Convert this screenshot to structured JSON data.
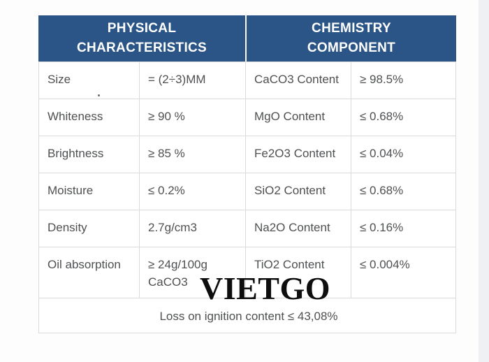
{
  "colors": {
    "header_bg": "#2a5586",
    "border": "#d9dadb",
    "cell_text": "#4e5052",
    "page_bg": "#fdfdfd",
    "right_strip": "#eef0f4",
    "watermark_color": "#0e0e0e"
  },
  "table": {
    "header": {
      "physical": "PHYSICAL\nCHARACTERISTICS",
      "chemistry": "CHEMISTRY\nCOMPONENT"
    },
    "rows": [
      {
        "phys_label": "Size",
        "phys_value": "= (2÷3)MM",
        "chem_label": "CaCO3 Content",
        "chem_value": "≥ 98.5%"
      },
      {
        "phys_label": "Whiteness",
        "phys_value": "≥ 90 %",
        "chem_label": "MgO Content",
        "chem_value": "≤ 0.68%"
      },
      {
        "phys_label": "Brightness",
        "phys_value": "≥ 85 %",
        "chem_label": "Fe2O3 Content",
        "chem_value": "≤ 0.04%"
      },
      {
        "phys_label": "Moisture",
        "phys_value": "≤ 0.2%",
        "chem_label": "SiO2 Content",
        "chem_value": "≤ 0.68%"
      },
      {
        "phys_label": "Density",
        "phys_value": "2.7g/cm3",
        "chem_label": "Na2O Content",
        "chem_value": "≤ 0.16%"
      },
      {
        "phys_label": "Oil absorption",
        "phys_value": "≥ 24g/100g CaCO3",
        "chem_label": "TiO2 Content",
        "chem_value": "≤ 0.004%"
      }
    ],
    "footer": "Loss on ignition content ≤ 43,08%"
  },
  "watermark": "VIETGO"
}
